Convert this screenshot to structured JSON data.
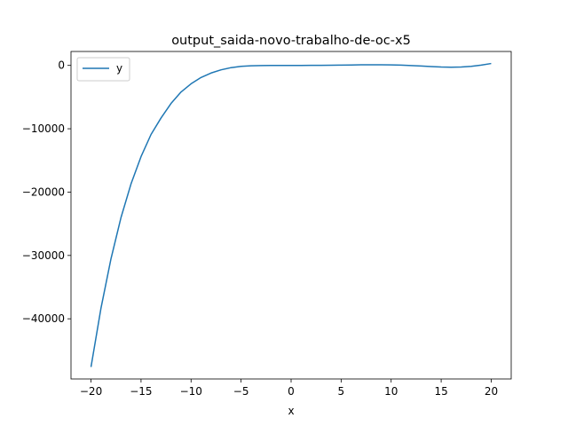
{
  "chart_data": {
    "type": "line",
    "title": "output_saida-novo-trabalho-de-oc-x5",
    "xlabel": "x",
    "ylabel": "",
    "xlim": [
      -22,
      22
    ],
    "ylim": [
      -49500,
      2200
    ],
    "x_ticks": [
      -20,
      -15,
      -10,
      -5,
      0,
      5,
      10,
      15,
      20
    ],
    "x_tick_labels": [
      "−20",
      "−15",
      "−10",
      "−5",
      "0",
      "5",
      "10",
      "15",
      "20"
    ],
    "y_ticks": [
      0,
      -10000,
      -20000,
      -30000,
      -40000
    ],
    "y_tick_labels": [
      "0",
      "−10000",
      "−20000",
      "−30000",
      "−40000"
    ],
    "grid": false,
    "legend": {
      "position": "top-left",
      "entries": [
        "y"
      ]
    },
    "series": [
      {
        "name": "y",
        "color": "#1f77b4",
        "x": [
          -20,
          -19,
          -18,
          -17,
          -16,
          -15,
          -14,
          -13,
          -12,
          -11,
          -10,
          -9,
          -8,
          -7,
          -6,
          -5,
          -4,
          -3,
          -2,
          -1,
          0,
          1,
          2,
          3,
          4,
          5,
          6,
          7,
          8,
          9,
          10,
          11,
          12,
          13,
          14,
          15,
          16,
          17,
          18,
          19,
          20
        ],
        "values": [
          -47600,
          -38300,
          -30500,
          -24000,
          -18700,
          -14400,
          -10900,
          -8300,
          -6000,
          -4200,
          -2900,
          -1900,
          -1200,
          -700,
          -350,
          -150,
          -60,
          -20,
          -5,
          0,
          0,
          0,
          5,
          15,
          30,
          50,
          70,
          90,
          100,
          100,
          80,
          40,
          -20,
          -100,
          -180,
          -250,
          -280,
          -250,
          -150,
          50,
          300
        ]
      }
    ]
  }
}
